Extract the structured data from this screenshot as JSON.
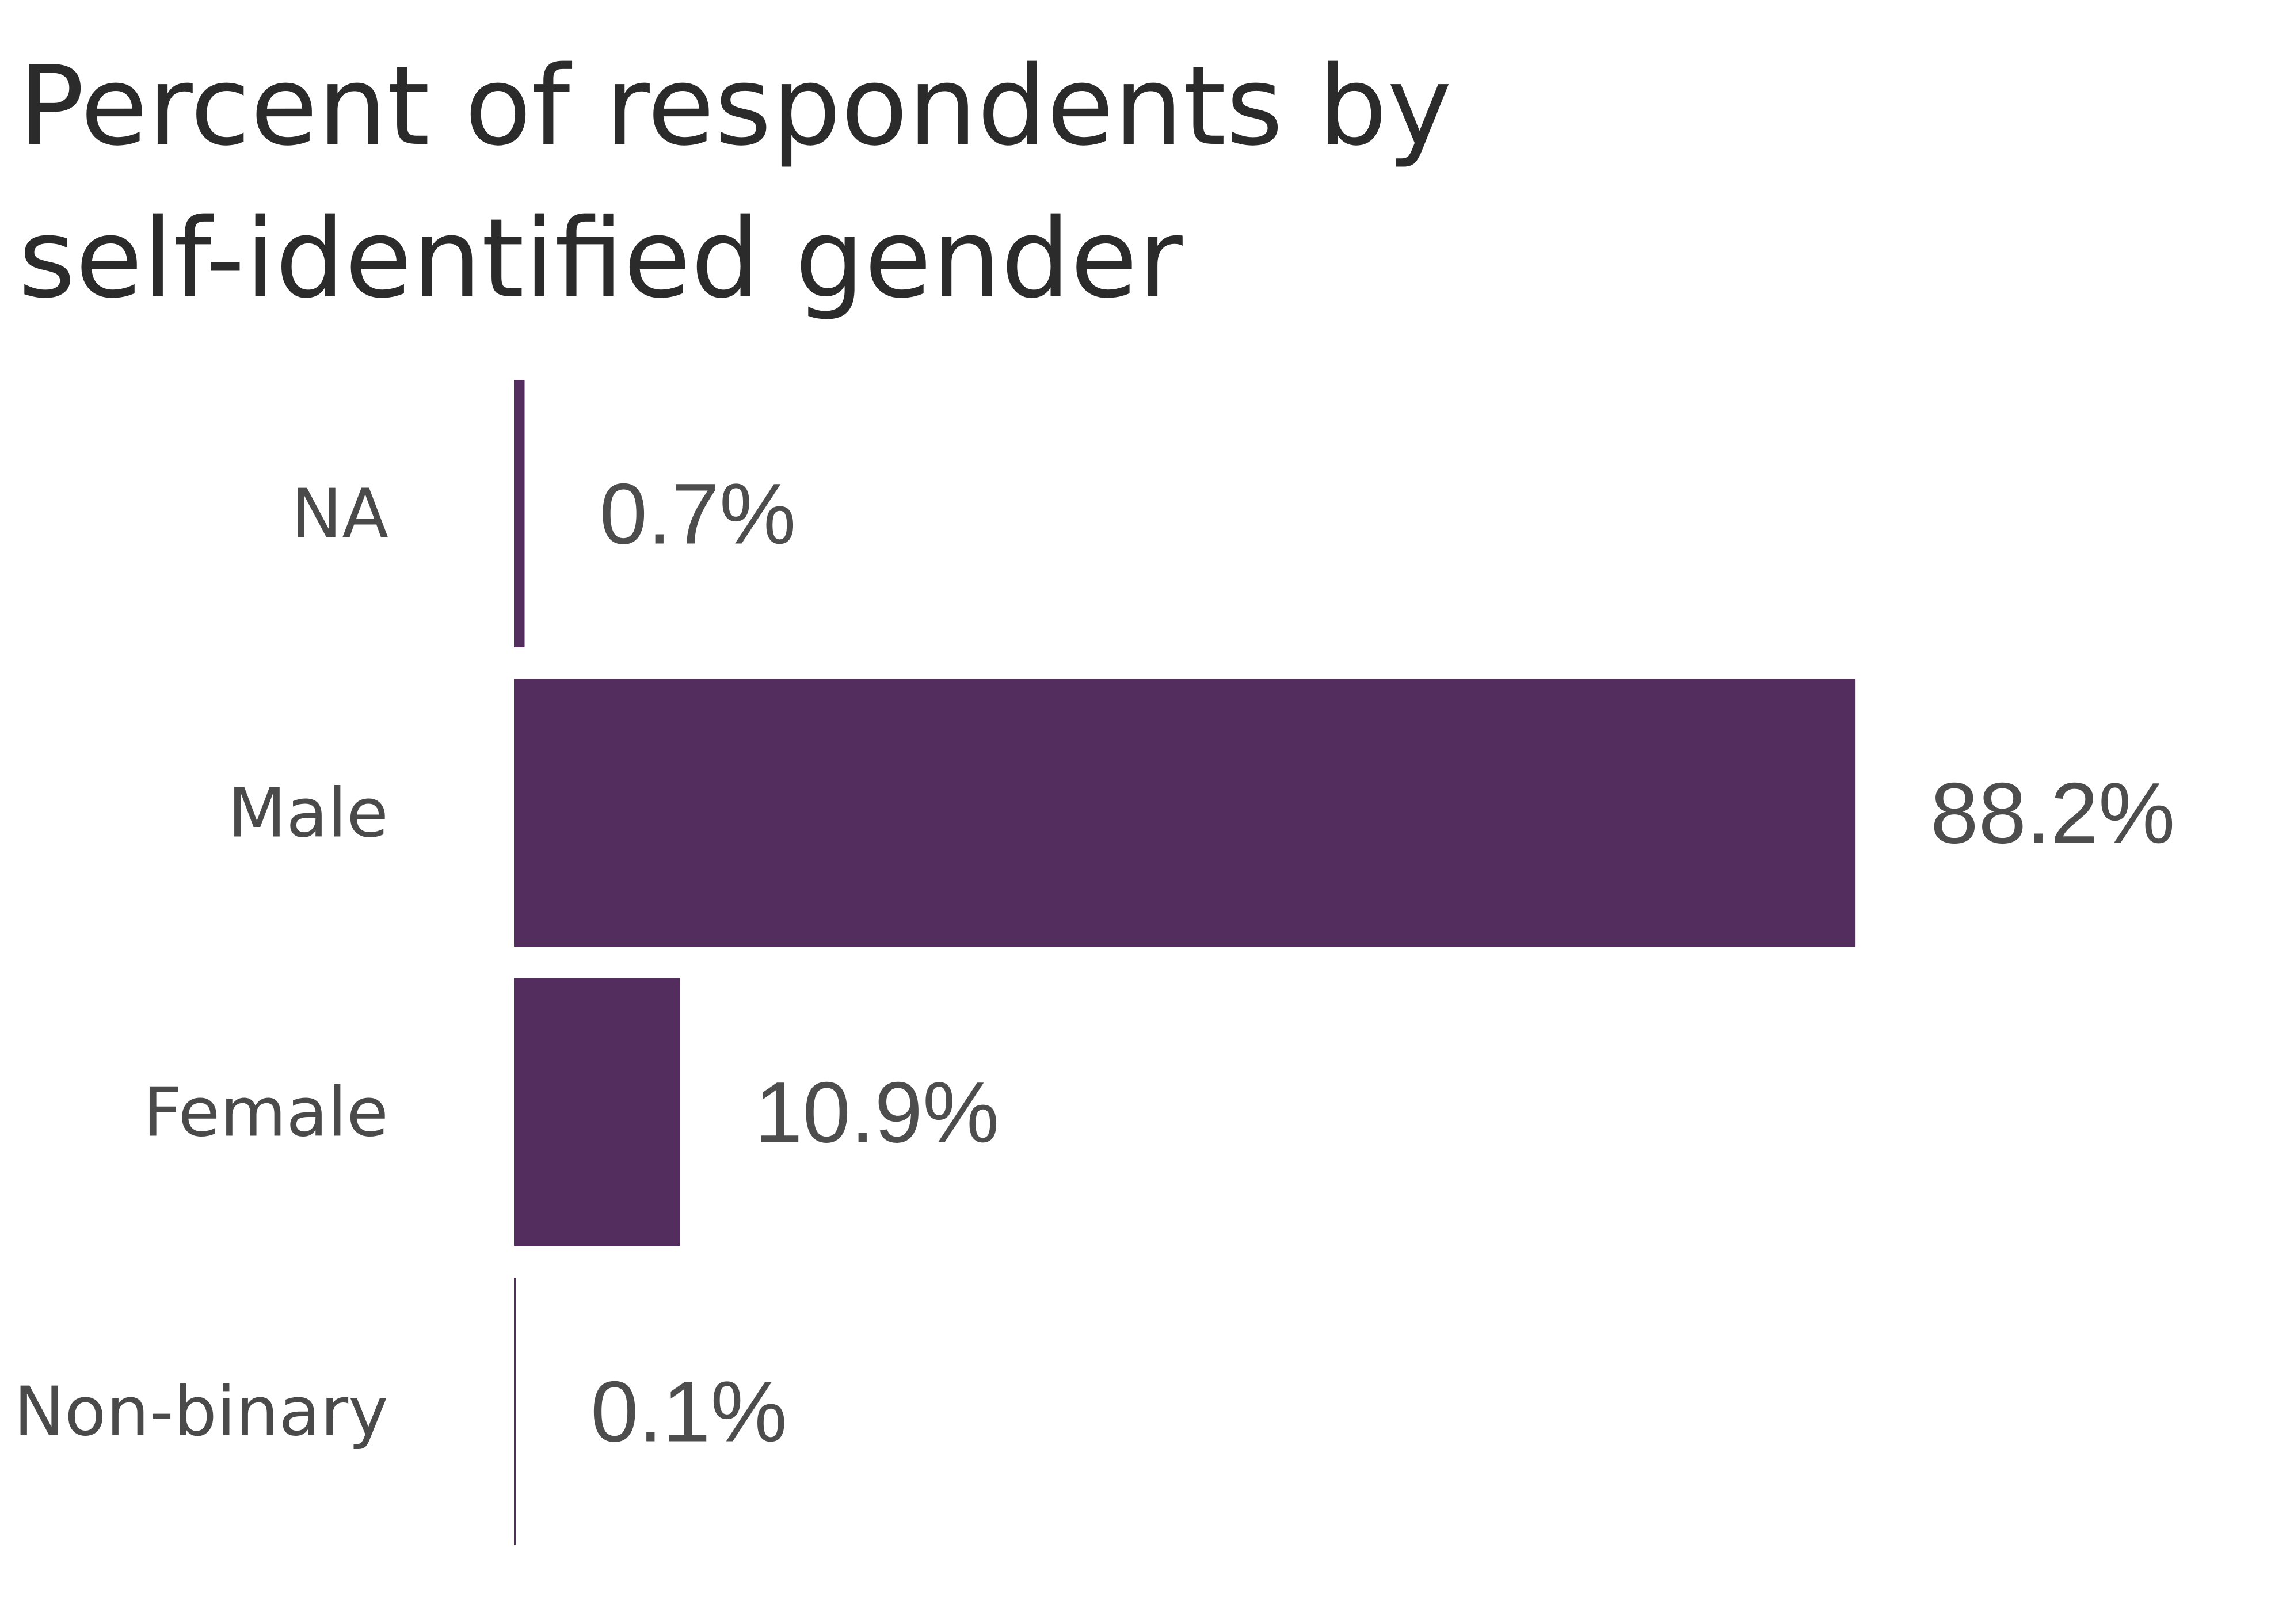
{
  "chart_data": {
    "type": "bar",
    "orientation": "horizontal",
    "title_lines": [
      "Percent of respondents by",
      "self-identified gender"
    ],
    "categories": [
      "NA",
      "Male",
      "Female",
      "Non-binary"
    ],
    "values": [
      0.7,
      88.2,
      10.9,
      0.1
    ],
    "value_labels": [
      "0.7%",
      "88.2%",
      "10.9%",
      "0.1%"
    ],
    "xlim": [
      0,
      100
    ],
    "grid": false,
    "legend": "none",
    "bar_color": "#532d5e"
  }
}
